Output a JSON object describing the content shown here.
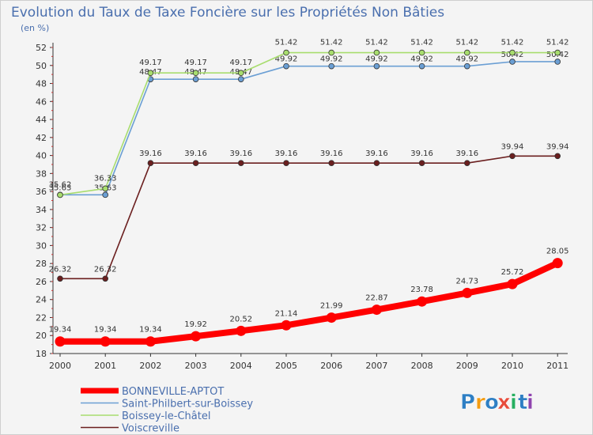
{
  "chart_data": {
    "type": "line",
    "title": "Evolution du Taux de Taxe Foncière sur les Propriétés Non Bâties",
    "unit_label": "(en %)",
    "xlabel": "",
    "ylabel": "",
    "categories": [
      "2000",
      "2001",
      "2002",
      "2003",
      "2004",
      "2005",
      "2006",
      "2007",
      "2008",
      "2009",
      "2010",
      "2011"
    ],
    "ylim": [
      18,
      52
    ],
    "yticks": [
      18,
      20,
      22,
      24,
      26,
      28,
      30,
      32,
      34,
      36,
      38,
      40,
      42,
      44,
      46,
      48,
      50,
      52
    ],
    "grid": false,
    "legend_position": "bottom-left",
    "series": [
      {
        "name": "Voiscreville",
        "color": "#6b1f1f",
        "values": [
          26.32,
          26.32,
          39.16,
          39.16,
          39.16,
          39.16,
          39.16,
          39.16,
          39.16,
          39.16,
          39.94,
          39.94
        ],
        "labels": [
          "26.32",
          "26.32",
          "39.16",
          "39.16",
          "39.16",
          "39.16",
          "39.16",
          "39.16",
          "39.16",
          "39.16",
          "39.94",
          "39.94"
        ]
      },
      {
        "name": "Saint-Philbert-sur-Boissey",
        "color": "#6b9fd4",
        "values": [
          35.63,
          35.63,
          48.47,
          48.47,
          48.47,
          49.92,
          49.92,
          49.92,
          49.92,
          49.92,
          50.42,
          50.42
        ],
        "labels": [
          "35.63",
          "35.63",
          "48.47",
          "48.47",
          "48.47",
          "49.92",
          "49.92",
          "49.92",
          "49.92",
          "49.92",
          "50.42",
          "50.42"
        ]
      },
      {
        "name": "Boissey-le-Châtel",
        "color": "#a8dd6e",
        "values": [
          35.62,
          36.33,
          49.17,
          49.17,
          49.17,
          51.42,
          51.42,
          51.42,
          51.42,
          51.42,
          51.42,
          51.42
        ],
        "labels": [
          "35.62",
          "36.33",
          "49.17",
          "49.17",
          "49.17",
          "51.42",
          "51.42",
          "51.42",
          "51.42",
          "51.42",
          "51.42",
          "51.42"
        ]
      },
      {
        "name": "BONNEVILLE-APTOT",
        "color": "#ff0000",
        "values": [
          19.34,
          19.34,
          19.34,
          19.92,
          20.52,
          21.14,
          21.99,
          22.87,
          23.78,
          24.73,
          25.72,
          28.05
        ],
        "labels": [
          "19.34",
          "19.34",
          "19.34",
          "19.92",
          "20.52",
          "21.14",
          "21.99",
          "22.87",
          "23.78",
          "24.73",
          "25.72",
          "28.05"
        ]
      }
    ],
    "legend": [
      {
        "name": "BONNEVILLE-APTOT",
        "color": "#ff0000"
      },
      {
        "name": "Saint-Philbert-sur-Boissey",
        "color": "#6b9fd4"
      },
      {
        "name": "Boissey-le-Châtel",
        "color": "#a8dd6e"
      },
      {
        "name": "Voiscreville",
        "color": "#6b1f1f"
      }
    ]
  },
  "brand": {
    "letters": [
      "P",
      "r",
      "o",
      "x",
      "i",
      "t",
      "i"
    ],
    "colors": [
      "#2e7fc4",
      "#f39c12",
      "#2e7fc4",
      "#e74c3c",
      "#27ae60",
      "#2e7fc4",
      "#8e44ad"
    ]
  }
}
